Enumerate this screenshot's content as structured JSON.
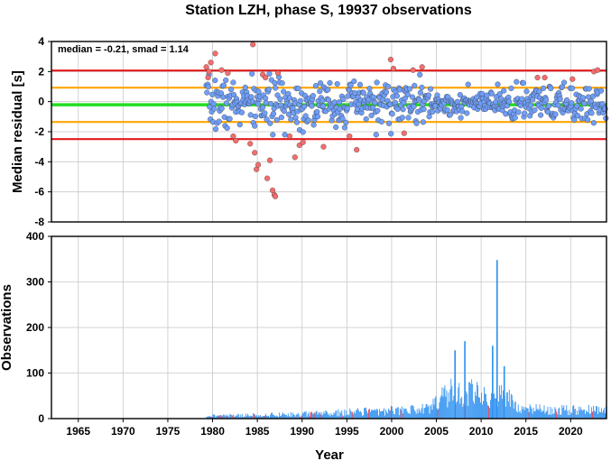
{
  "chart_data": [
    {
      "type": "scatter",
      "title": "Station LZH, phase S, 19937 observations",
      "ylabel": "Median residual [s]",
      "xlim": [
        1962,
        2024
      ],
      "ylim": [
        -8,
        4
      ],
      "yticks": [
        -8,
        -6,
        -4,
        -2,
        0,
        2,
        4
      ],
      "grid": true,
      "annotation": "median = -0.21, smad = 1.14",
      "reference_lines": [
        {
          "value": -0.21,
          "color": "#22dd22",
          "role": "median"
        },
        {
          "value": 0.93,
          "color": "#ffa500",
          "role": "+1 smad"
        },
        {
          "value": -1.35,
          "color": "#ffa500",
          "role": "-1 smad"
        },
        {
          "value": 2.07,
          "color": "#e31a1c",
          "role": "+2 smad"
        },
        {
          "value": -2.49,
          "color": "#e31a1c",
          "role": "-2 smad"
        }
      ],
      "point_colors": {
        "inlier": "#6f9ef8",
        "outlier": "#f46d6d",
        "edge": "#333333"
      },
      "points": [
        [
          1979.3,
          2.3
        ],
        [
          1979.5,
          1.6
        ],
        [
          1979.6,
          2.0
        ],
        [
          1979.8,
          2.6
        ],
        [
          1980.3,
          3.2
        ],
        [
          1981.0,
          2.1
        ],
        [
          1981.7,
          1.9
        ],
        [
          1982.3,
          -2.3
        ],
        [
          1982.6,
          -2.6
        ],
        [
          1984.2,
          -2.8
        ],
        [
          1984.5,
          3.8
        ],
        [
          1984.7,
          -3.4
        ],
        [
          1984.9,
          -4.5
        ],
        [
          1985.1,
          -4.2
        ],
        [
          1985.6,
          1.8
        ],
        [
          1985.9,
          1.6
        ],
        [
          1986.1,
          -5.1
        ],
        [
          1986.4,
          -3.9
        ],
        [
          1986.7,
          -5.9
        ],
        [
          1986.9,
          -6.2
        ],
        [
          1987.0,
          -6.3
        ],
        [
          1987.3,
          1.9
        ],
        [
          1988.6,
          -2.3
        ],
        [
          1989.2,
          -3.7
        ],
        [
          1989.7,
          -2.9
        ],
        [
          1990.1,
          -2.7
        ],
        [
          1992.4,
          -3.0
        ],
        [
          1995.3,
          -2.3
        ],
        [
          1996.1,
          -3.2
        ],
        [
          1999.9,
          2.8
        ],
        [
          2000.2,
          2.2
        ],
        [
          2001.4,
          -2.1
        ],
        [
          2002.4,
          2.1
        ],
        [
          2003.4,
          2.3
        ],
        [
          2016.3,
          1.6
        ],
        [
          2017.1,
          1.6
        ],
        [
          2020.2,
          1.5
        ],
        [
          2022.6,
          2.0
        ],
        [
          2023.0,
          2.1
        ]
      ]
    },
    {
      "type": "bar",
      "xlabel": "Year",
      "ylabel": "Observations",
      "xlim": [
        1962,
        2024
      ],
      "ylim": [
        0,
        400
      ],
      "xticks": [
        1965,
        1970,
        1975,
        1980,
        1985,
        1990,
        1995,
        2000,
        2005,
        2010,
        2015,
        2020
      ],
      "yticks": [
        0,
        100,
        200,
        300,
        400
      ],
      "grid": true,
      "bar_colors": {
        "normal": "#2b8ff0",
        "highlight": "#d9364a"
      },
      "start_year": 1979.3,
      "bar_width_years": 0.1,
      "peaks": [
        {
          "x": 2011.7,
          "value": 348
        },
        {
          "x": 2008.1,
          "value": 170
        },
        {
          "x": 2011.2,
          "value": 160
        },
        {
          "x": 2012.5,
          "value": 115
        },
        {
          "x": 2007.0,
          "value": 150
        }
      ],
      "envelope": [
        [
          1979.3,
          10
        ],
        [
          1985.0,
          12
        ],
        [
          1990.0,
          16
        ],
        [
          1995.0,
          22
        ],
        [
          2000.0,
          28
        ],
        [
          2003.0,
          32
        ],
        [
          2004.5,
          45
        ],
        [
          2005.5,
          80
        ],
        [
          2007.0,
          95
        ],
        [
          2009.0,
          90
        ],
        [
          2011.0,
          85
        ],
        [
          2013.0,
          70
        ],
        [
          2014.0,
          35
        ],
        [
          2018.0,
          30
        ],
        [
          2021.0,
          30
        ],
        [
          2024.0,
          32
        ]
      ]
    }
  ]
}
